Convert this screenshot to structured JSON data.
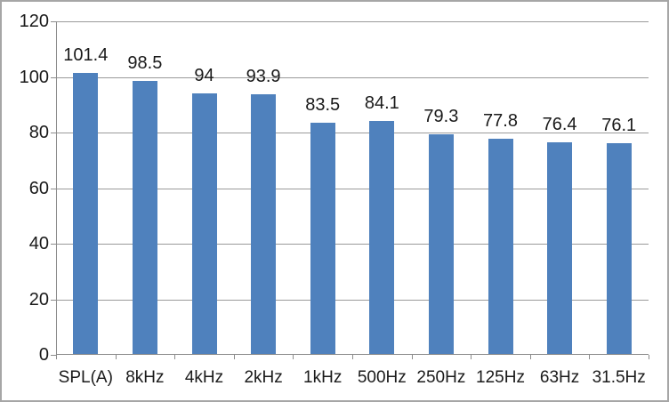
{
  "chart_data": {
    "type": "bar",
    "categories": [
      "SPL(A)",
      "8kHz",
      "4kHz",
      "2kHz",
      "1kHz",
      "500Hz",
      "250Hz",
      "125Hz",
      "63Hz",
      "31.5Hz"
    ],
    "values": [
      101.4,
      98.5,
      94,
      93.9,
      83.5,
      84.1,
      79.3,
      77.8,
      76.4,
      76.1
    ],
    "data_labels": [
      "101.4",
      "98.5",
      "94",
      "93.9",
      "83.5",
      "84.1",
      "79.3",
      "77.8",
      "76.4",
      "76.1"
    ],
    "title": "",
    "xlabel": "",
    "ylabel": "",
    "ylim": [
      0,
      120
    ],
    "ytick_interval": 20,
    "ytick_labels": [
      "0",
      "20",
      "40",
      "60",
      "80",
      "100",
      "120"
    ],
    "grid": true,
    "legend": false,
    "bar_color": "#4f81bd",
    "gridline_color": "#9a9a9a",
    "axis_color": "#8c8c8c",
    "text_color": "#1a1a1a",
    "border_color": "#a6a6a6",
    "background": "#ffffff"
  }
}
